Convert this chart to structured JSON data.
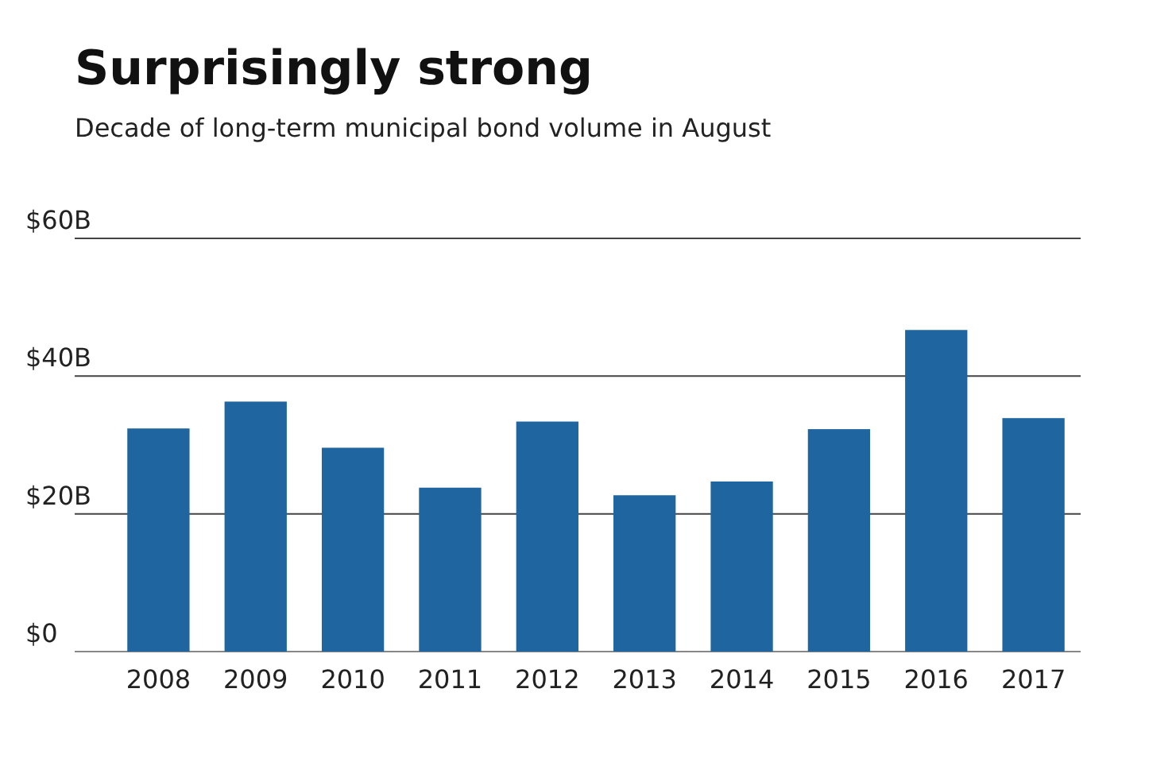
{
  "chart_data": {
    "type": "bar",
    "title": "Surprisingly strong",
    "subtitle": "Decade of long-term municipal bond volume in August",
    "categories": [
      "2008",
      "2009",
      "2010",
      "2011",
      "2012",
      "2013",
      "2014",
      "2015",
      "2016",
      "2017"
    ],
    "values": [
      32.4,
      36.3,
      29.6,
      23.8,
      33.4,
      22.7,
      24.7,
      32.3,
      46.7,
      33.9
    ],
    "color": "#1f66a0",
    "ylim": [
      0,
      60
    ],
    "yticks": [
      {
        "value": 0,
        "label": "$0"
      },
      {
        "value": 20,
        "label": "$20B"
      },
      {
        "value": 40,
        "label": "$40B"
      },
      {
        "value": 60,
        "label": "$60B"
      }
    ],
    "grid": "y"
  }
}
